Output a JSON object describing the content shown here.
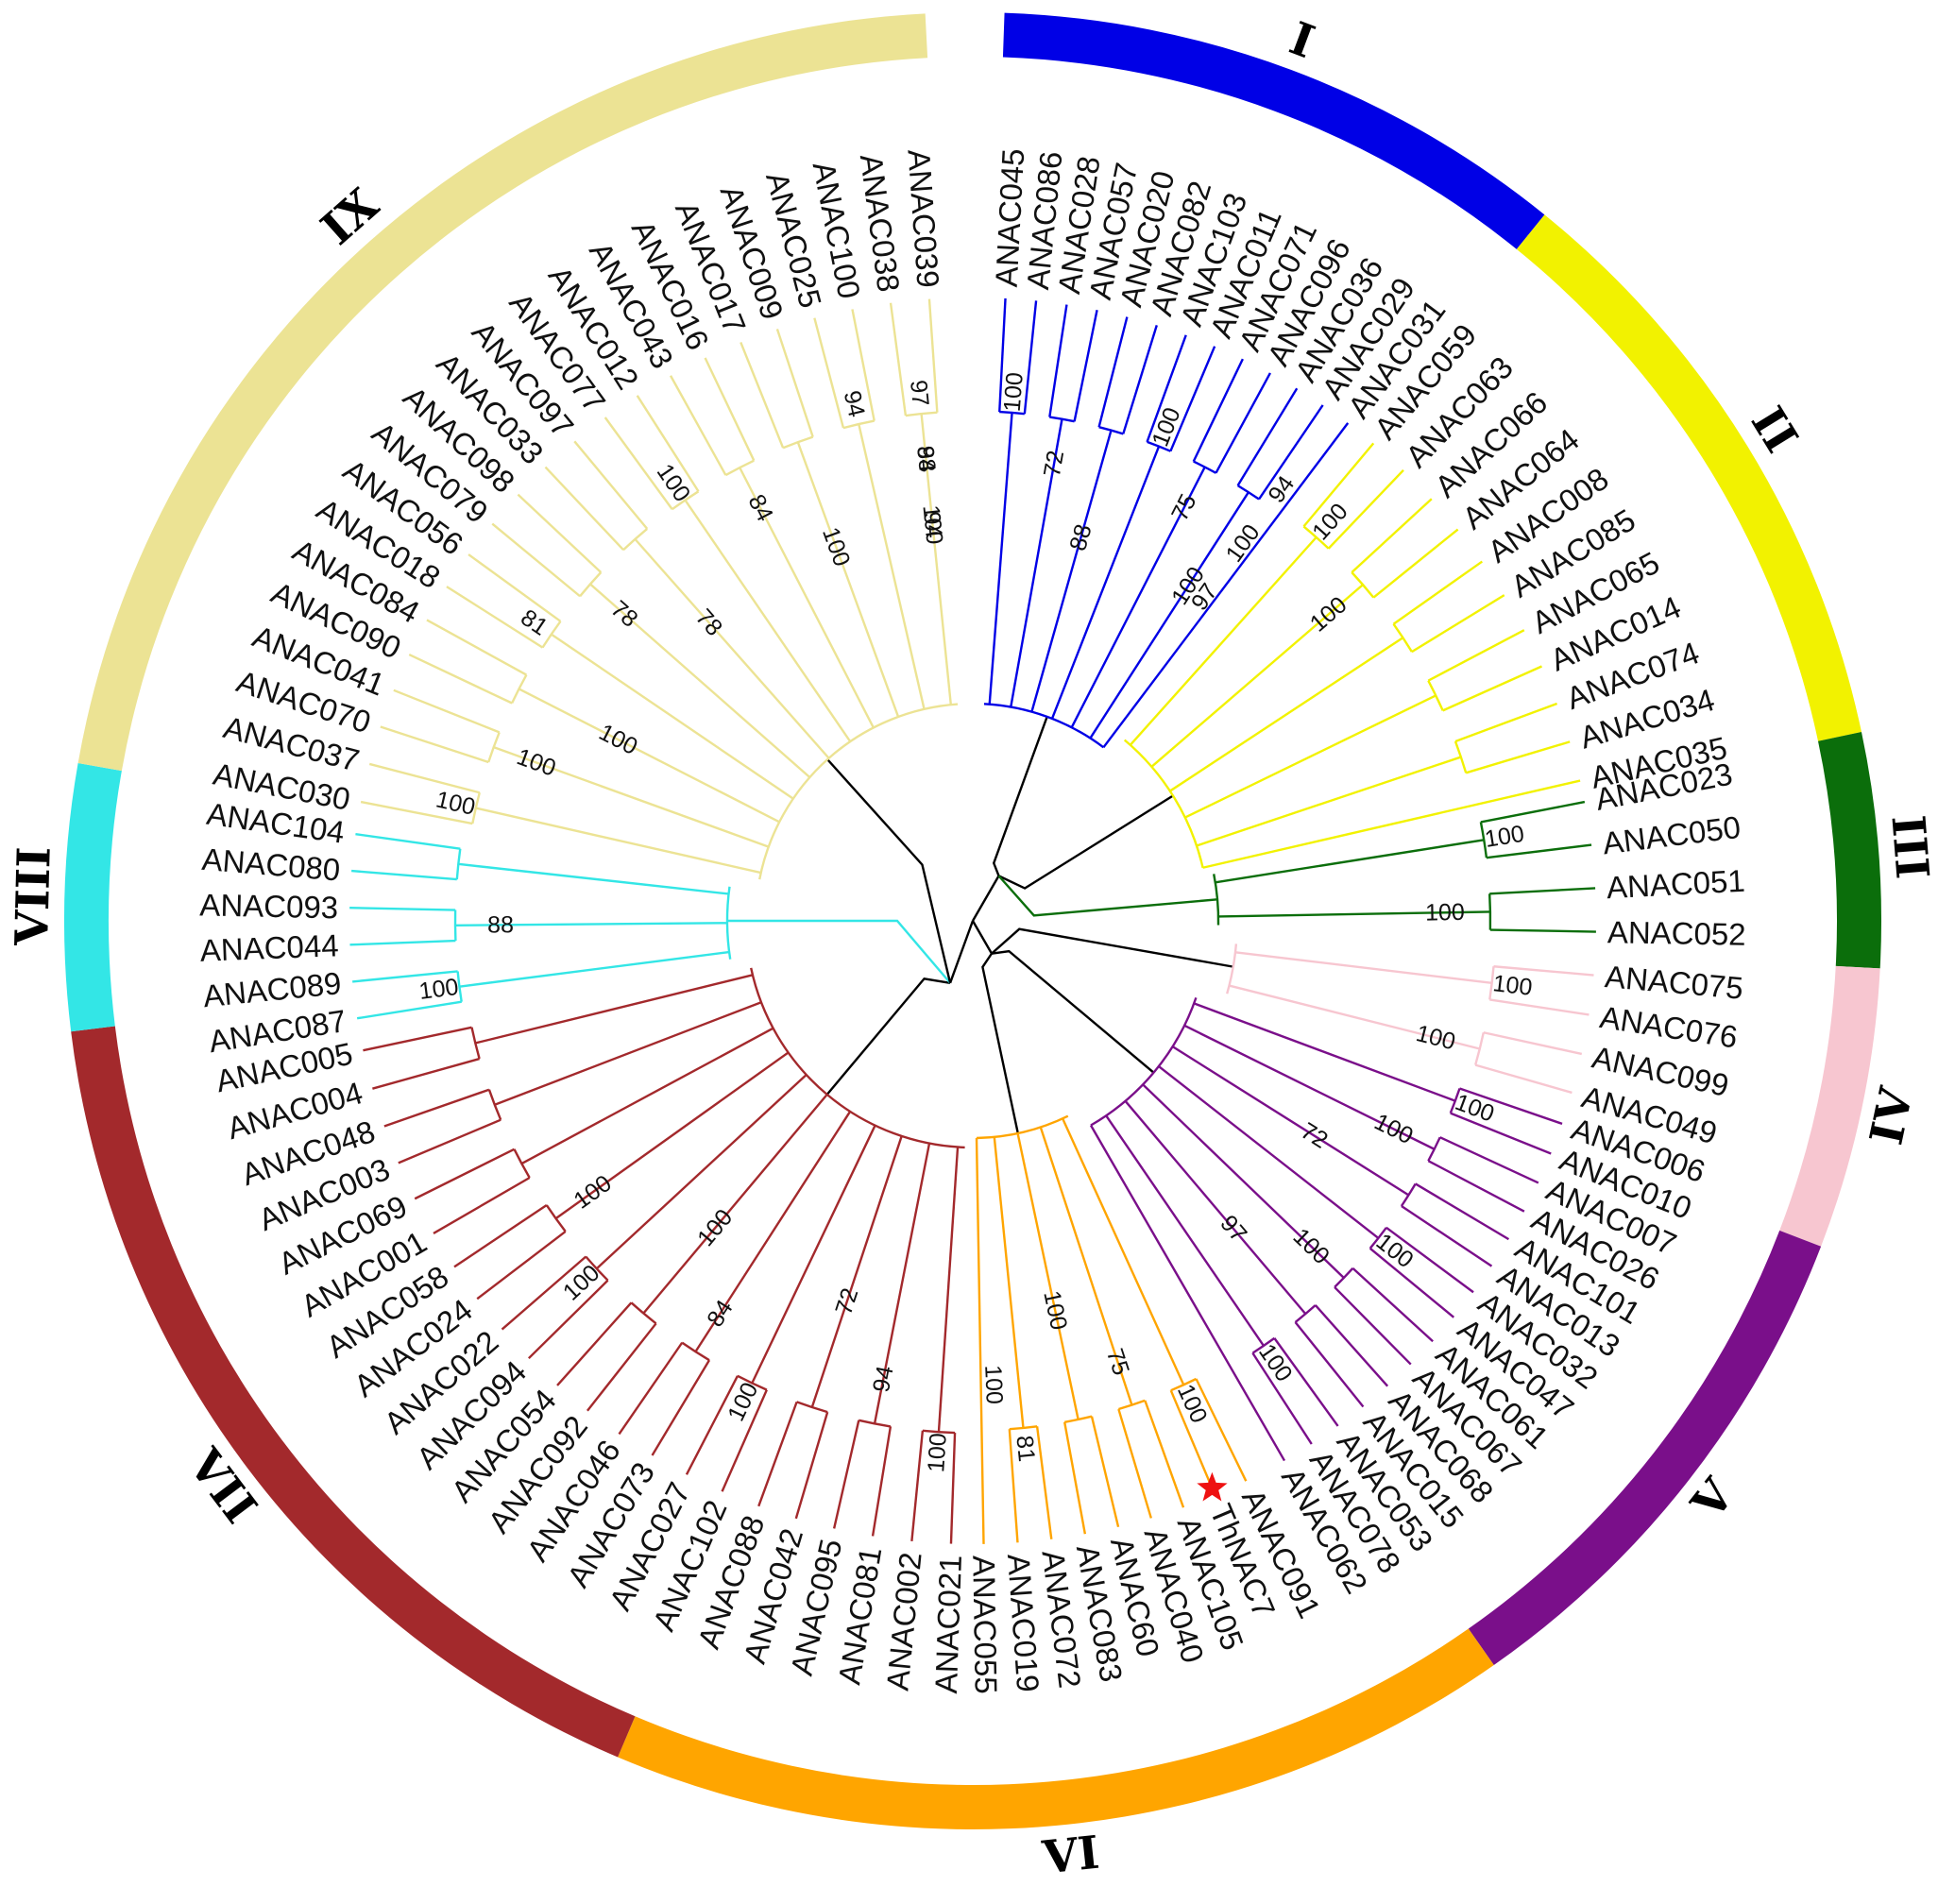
{
  "figure": {
    "type": "circular-phylogenetic-tree",
    "marked_gene": "ThNAC7"
  },
  "clades": [
    {
      "label": "I",
      "color": "#0000e6",
      "leaves": [
        "ANAC045",
        "ANAC086",
        "ANAC028",
        "ANAC057",
        "ANAC020",
        "ANAC082",
        "ANAC103",
        "ANAC011",
        "ANAC071",
        "ANAC096",
        "ANAC036",
        "ANAC029",
        "ANAC031"
      ],
      "bootstraps": [
        "100",
        "72",
        "88",
        "100",
        "75",
        "100",
        "94",
        "100",
        "97"
      ]
    },
    {
      "label": "II",
      "color": "#f2f200",
      "leaves": [
        "ANAC059",
        "ANAC063",
        "ANAC066",
        "ANAC064",
        "ANAC008",
        "ANAC085",
        "ANAC065",
        "ANAC014",
        "ANAC074",
        "ANAC034",
        "ANAC035"
      ],
      "bootstraps": [
        "100",
        "100"
      ]
    },
    {
      "label": "III",
      "color": "#0b6e0b",
      "leaves": [
        "ANAC023",
        "ANAC050",
        "ANAC051",
        "ANAC052"
      ],
      "bootstraps": [
        "100",
        "100"
      ]
    },
    {
      "label": "IV",
      "color": "#f7c6d0",
      "leaves": [
        "ANAC075",
        "ANAC076",
        "ANAC099",
        "ANAC049"
      ],
      "bootstraps": [
        "100",
        "100"
      ]
    },
    {
      "label": "V",
      "color": "#7a0f8a",
      "leaves": [
        "ANAC006",
        "ANAC010",
        "ANAC007",
        "ANAC026",
        "ANAC101",
        "ANAC013",
        "ANAC032",
        "ANAC047",
        "ANAC061",
        "ANAC067",
        "ANAC068",
        "ANAC015",
        "ANAC053",
        "ANAC078",
        "ANAC062"
      ],
      "bootstraps": [
        "100",
        "100",
        "72",
        "100",
        "100",
        "97",
        "100"
      ]
    },
    {
      "label": "VI",
      "color": "#ffa500",
      "leaves": [
        "ANAC091",
        "ThNAC7",
        "ANAC105",
        "ANAC040",
        "ANAC60",
        "ANAC083",
        "ANAC072",
        "ANAC019",
        "ANAC055"
      ],
      "bootstraps": [
        "100",
        "75",
        "100",
        "81",
        "100"
      ]
    },
    {
      "label": "VII",
      "color": "#a3292c",
      "leaves": [
        "ANAC021",
        "ANAC002",
        "ANAC081",
        "ANAC095",
        "ANAC042",
        "ANAC088",
        "ANAC102",
        "ANAC027",
        "ANAC073",
        "ANAC046",
        "ANAC092",
        "ANAC054",
        "ANAC094",
        "ANAC022",
        "ANAC024",
        "ANAC058",
        "ANAC001",
        "ANAC069",
        "ANAC003",
        "ANAC048",
        "ANAC004",
        "ANAC005"
      ],
      "bootstraps": [
        "100",
        "94",
        "72",
        "100",
        "84",
        "100",
        "100",
        "100"
      ]
    },
    {
      "label": "VIII",
      "color": "#33e6e6",
      "leaves": [
        "ANAC087",
        "ANAC089",
        "ANAC044",
        "ANAC093",
        "ANAC080",
        "ANAC104"
      ],
      "bootstraps": [
        "100",
        "88"
      ]
    },
    {
      "label": "IX",
      "color": "#ece394",
      "leaves": [
        "ANAC030",
        "ANAC037",
        "ANAC070",
        "ANAC041",
        "ANAC090",
        "ANAC084",
        "ANAC018",
        "ANAC056",
        "ANAC079",
        "ANAC098",
        "ANAC033",
        "ANAC097",
        "ANAC077",
        "ANAC012",
        "ANAC043",
        "ANAC016",
        "ANAC017",
        "ANAC009",
        "ANAC025",
        "ANAC100",
        "ANAC038",
        "ANAC039"
      ],
      "bootstraps": [
        "100",
        "100",
        "100",
        "81",
        "78",
        "78",
        "100",
        "84",
        "100",
        "94",
        "94",
        "94",
        "97",
        "88",
        "100"
      ]
    }
  ]
}
